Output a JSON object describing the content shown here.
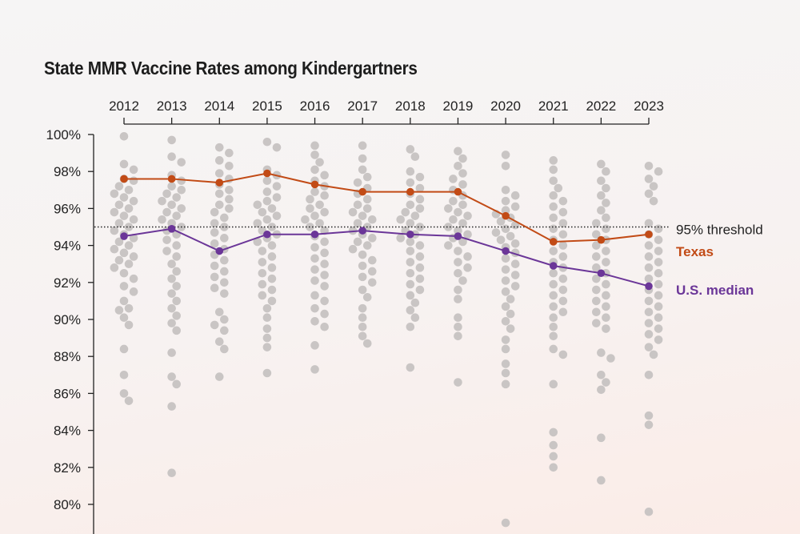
{
  "chart_data": {
    "type": "scatter",
    "title": "State MMR Vaccine Rates among Kindergartners",
    "xlabel": "",
    "ylabel": "",
    "years": [
      "2012",
      "2013",
      "2014",
      "2015",
      "2016",
      "2017",
      "2018",
      "2019",
      "2020",
      "2021",
      "2022",
      "2023"
    ],
    "y_ticks": [
      80,
      82,
      84,
      86,
      88,
      90,
      92,
      94,
      96,
      98,
      100
    ],
    "y_tick_labels": [
      "80%",
      "82%",
      "84%",
      "86%",
      "88%",
      "90%",
      "92%",
      "94%",
      "96%",
      "98%",
      "100%"
    ],
    "ylim": [
      78,
      100
    ],
    "threshold": {
      "value": 95,
      "label": "95% threshold"
    },
    "series": [
      {
        "name": "Texas",
        "color": "#c24b16",
        "values": [
          97.6,
          97.6,
          97.4,
          97.9,
          97.3,
          96.9,
          96.9,
          96.9,
          95.6,
          94.2,
          94.3,
          94.6
        ]
      },
      {
        "name": "U.S. median",
        "color": "#6b3698",
        "values": [
          94.5,
          94.9,
          93.7,
          94.6,
          94.6,
          94.8,
          94.6,
          94.5,
          93.7,
          92.9,
          92.5,
          91.8
        ]
      }
    ],
    "state_dot_color": "#c9c5c4",
    "states": [
      [
        99.9,
        98.4,
        98.1,
        97.6,
        97.5,
        97.2,
        97.0,
        96.8,
        96.6,
        96.4,
        96.2,
        96.0,
        95.8,
        95.6,
        95.4,
        95.2,
        95.0,
        94.8,
        94.6,
        94.4,
        94.2,
        94.0,
        93.8,
        93.6,
        93.4,
        93.2,
        93.0,
        92.8,
        92.5,
        92.2,
        91.8,
        91.5,
        91.0,
        90.6,
        90.5,
        90.1,
        89.7,
        88.4,
        87.0,
        86.0,
        85.6
      ],
      [
        99.7,
        98.8,
        98.5,
        97.8,
        97.5,
        97.2,
        97.0,
        96.8,
        96.6,
        96.4,
        96.2,
        96.0,
        95.8,
        95.6,
        95.4,
        95.2,
        95.0,
        94.8,
        94.6,
        94.3,
        94.0,
        93.7,
        93.4,
        93.0,
        92.6,
        92.2,
        91.8,
        91.4,
        91.0,
        90.6,
        90.2,
        89.8,
        89.4,
        88.2,
        86.9,
        86.5,
        85.3,
        81.7
      ],
      [
        99.3,
        99.0,
        98.6,
        98.3,
        97.9,
        97.6,
        97.3,
        97.0,
        96.8,
        96.5,
        96.2,
        96.0,
        95.8,
        95.5,
        95.2,
        95.0,
        94.7,
        94.4,
        94.1,
        93.8,
        93.5,
        93.2,
        92.9,
        92.6,
        92.3,
        92.0,
        91.7,
        91.4,
        90.4,
        90.0,
        89.7,
        89.4,
        88.8,
        88.4,
        86.9
      ],
      [
        99.6,
        99.3,
        98.1,
        97.8,
        97.5,
        97.2,
        96.9,
        96.6,
        96.4,
        96.2,
        96.0,
        95.8,
        95.6,
        95.4,
        95.2,
        95.0,
        94.8,
        94.6,
        94.4,
        94.2,
        94.0,
        93.7,
        93.4,
        93.1,
        92.8,
        92.5,
        92.2,
        91.9,
        91.6,
        91.3,
        91.0,
        90.6,
        90.1,
        89.5,
        89.0,
        88.5,
        87.1
      ],
      [
        99.4,
        98.9,
        98.5,
        98.1,
        97.8,
        97.5,
        97.2,
        96.9,
        96.7,
        96.5,
        96.2,
        96.0,
        95.8,
        95.6,
        95.4,
        95.2,
        95.0,
        94.8,
        94.5,
        94.2,
        93.9,
        93.6,
        93.3,
        93.0,
        92.7,
        92.4,
        92.1,
        91.8,
        91.3,
        91.0,
        90.6,
        90.3,
        89.9,
        89.6,
        88.6,
        87.3
      ],
      [
        99.4,
        98.7,
        98.1,
        97.7,
        97.4,
        97.1,
        96.8,
        96.5,
        96.2,
        96.0,
        95.8,
        95.6,
        95.4,
        95.2,
        95.0,
        94.8,
        94.6,
        94.4,
        94.2,
        94.0,
        93.8,
        93.5,
        93.2,
        92.9,
        92.6,
        92.3,
        92.0,
        91.6,
        91.2,
        90.6,
        90.1,
        89.6,
        89.1,
        88.7
      ],
      [
        99.2,
        98.8,
        98.0,
        97.7,
        97.4,
        97.1,
        96.8,
        96.5,
        96.2,
        96.0,
        95.8,
        95.6,
        95.4,
        95.2,
        95.0,
        94.8,
        94.6,
        94.4,
        94.2,
        94.0,
        93.7,
        93.4,
        93.1,
        92.8,
        92.5,
        92.2,
        91.9,
        91.6,
        91.3,
        90.9,
        90.5,
        90.1,
        89.6,
        87.4
      ],
      [
        99.1,
        98.7,
        98.3,
        97.9,
        97.6,
        97.3,
        97.0,
        96.7,
        96.4,
        96.2,
        96.0,
        95.8,
        95.6,
        95.4,
        95.2,
        95.0,
        94.8,
        94.6,
        94.4,
        94.2,
        94.0,
        93.7,
        93.4,
        93.1,
        92.8,
        92.5,
        92.1,
        91.6,
        91.1,
        90.1,
        89.6,
        89.1,
        86.6
      ],
      [
        98.9,
        98.3,
        97.0,
        96.7,
        96.4,
        96.1,
        95.9,
        95.7,
        95.5,
        95.3,
        95.1,
        94.9,
        94.7,
        94.5,
        94.3,
        94.1,
        93.9,
        93.6,
        93.3,
        93.0,
        92.7,
        92.4,
        92.1,
        91.8,
        91.5,
        91.1,
        90.7,
        90.3,
        89.9,
        89.5,
        88.9,
        88.4,
        87.6,
        87.1,
        86.5,
        79.0
      ],
      [
        98.6,
        98.1,
        97.5,
        97.1,
        96.7,
        96.4,
        96.1,
        95.8,
        95.5,
        95.2,
        94.9,
        94.6,
        94.3,
        94.0,
        93.7,
        93.4,
        93.1,
        92.8,
        92.5,
        92.2,
        91.9,
        91.6,
        91.3,
        91.0,
        90.7,
        90.4,
        90.1,
        89.6,
        89.1,
        88.4,
        88.1,
        86.5,
        83.9,
        83.2,
        82.6,
        82.0
      ],
      [
        98.4,
        98.0,
        97.5,
        97.1,
        96.7,
        96.3,
        95.9,
        95.5,
        95.2,
        94.9,
        94.6,
        94.3,
        94.0,
        93.7,
        93.4,
        93.1,
        92.8,
        92.5,
        92.2,
        91.9,
        91.6,
        91.3,
        91.0,
        90.7,
        90.4,
        90.1,
        89.8,
        89.5,
        88.2,
        87.9,
        87.0,
        86.6,
        86.2,
        83.6,
        81.3
      ],
      [
        98.3,
        98.0,
        97.6,
        97.2,
        96.8,
        96.4,
        95.2,
        94.9,
        94.6,
        94.3,
        94.0,
        93.7,
        93.4,
        93.1,
        92.8,
        92.5,
        92.2,
        91.9,
        91.6,
        91.3,
        91.0,
        90.7,
        90.4,
        90.1,
        89.8,
        89.5,
        89.2,
        88.9,
        88.5,
        88.1,
        87.0,
        84.8,
        84.3,
        79.6
      ]
    ]
  }
}
